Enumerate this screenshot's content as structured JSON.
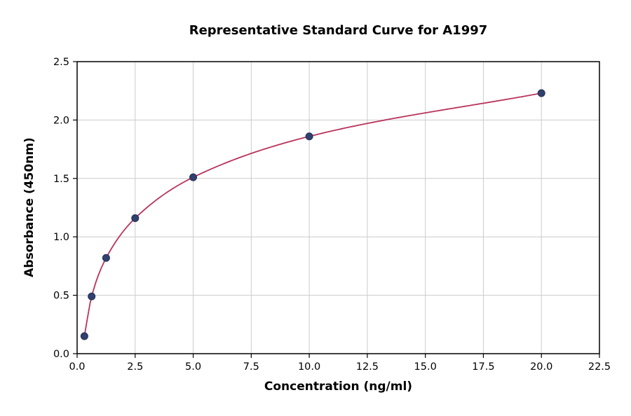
{
  "chart_data": {
    "type": "line",
    "title": "Representative Standard Curve for A1997",
    "xlabel": "Concentration (ng/ml)",
    "ylabel": "Absorbance (450nm)",
    "xlim": [
      0,
      22.5
    ],
    "ylim": [
      0,
      2.5
    ],
    "xticks": [
      "0.0",
      "2.5",
      "5.0",
      "7.5",
      "10.0",
      "12.5",
      "15.0",
      "17.5",
      "20.0",
      "22.5"
    ],
    "yticks": [
      "0.0",
      "0.5",
      "1.0",
      "1.5",
      "2.0",
      "2.5"
    ],
    "grid": true,
    "legend": "none",
    "line_color": "#b8345c",
    "marker_color": "#31406f",
    "marker_edge_color": "#22304f",
    "grid_color": "#cccccc",
    "axis_color": "#000000",
    "background": "#ffffff",
    "points": [
      {
        "x": 0.313,
        "y": 0.15
      },
      {
        "x": 0.625,
        "y": 0.49
      },
      {
        "x": 1.25,
        "y": 0.82
      },
      {
        "x": 2.5,
        "y": 1.16
      },
      {
        "x": 5.0,
        "y": 1.51
      },
      {
        "x": 10.0,
        "y": 1.86
      },
      {
        "x": 20.0,
        "y": 2.23
      }
    ]
  }
}
